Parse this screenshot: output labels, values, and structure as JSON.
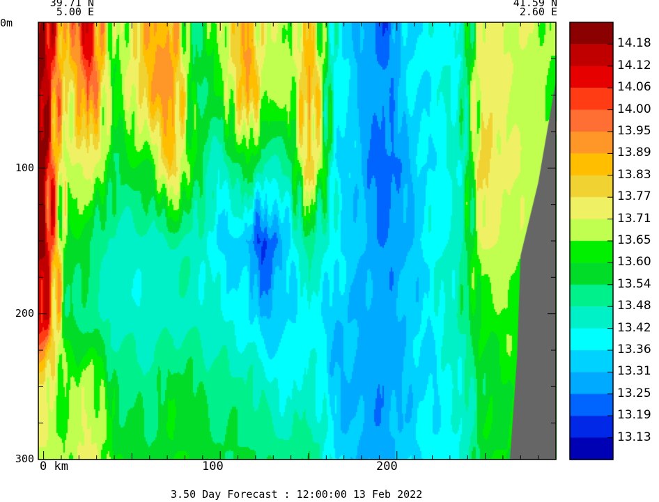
{
  "chart_data": {
    "type": "heatmap",
    "title": "3.50 Day Forecast : 12:00:00  13 Feb 2022",
    "start_point": {
      "lat": "39.71 N",
      "lon": "5.00 E"
    },
    "end_point": {
      "lat": "41.59 N",
      "lon": "2.60 E"
    },
    "xlabel": "km",
    "ylabel": "m",
    "xlim": [
      -3,
      290
    ],
    "ylim": [
      0,
      300
    ],
    "x_ticks": [
      0,
      100,
      200
    ],
    "x_tick_labels": [
      "0 km",
      "100",
      "200"
    ],
    "y_ticks": [
      0,
      100,
      200,
      300
    ],
    "y_tick_labels": [
      "0m",
      "100",
      "200",
      "300"
    ],
    "colorbar": {
      "labels": [
        "14.18",
        "14.12",
        "14.06",
        "14.00",
        "13.95",
        "13.89",
        "13.83",
        "13.77",
        "13.71",
        "13.65",
        "13.60",
        "13.54",
        "13.48",
        "13.42",
        "13.36",
        "13.31",
        "13.25",
        "13.19",
        "13.13"
      ],
      "colors": [
        "#8b0000",
        "#c00000",
        "#e60000",
        "#ff3c14",
        "#ff6e32",
        "#ff9628",
        "#ffbe00",
        "#f0d232",
        "#f0f064",
        "#c0ff50",
        "#00f000",
        "#00dc28",
        "#00f08c",
        "#00f0c8",
        "#00ffff",
        "#00d2ff",
        "#00aaff",
        "#0064ff",
        "#0028e6",
        "#0000b4"
      ]
    },
    "land_color": "#666666",
    "columns": [
      {
        "x": 0,
        "v": [
          14.2,
          14.2,
          14.2,
          14.2,
          14.15,
          13.75,
          13.7
        ]
      },
      {
        "x": 12,
        "v": [
          13.85,
          13.7,
          13.65,
          13.6,
          13.55,
          13.62,
          13.65
        ]
      },
      {
        "x": 25,
        "v": [
          14.15,
          14.0,
          13.75,
          13.55,
          13.5,
          13.72,
          13.75
        ]
      },
      {
        "x": 40,
        "v": [
          13.6,
          13.6,
          13.55,
          13.45,
          13.45,
          13.55,
          13.6
        ]
      },
      {
        "x": 60,
        "v": [
          13.9,
          13.85,
          13.6,
          13.45,
          13.42,
          13.5,
          13.55
        ]
      },
      {
        "x": 72,
        "v": [
          13.9,
          13.95,
          13.83,
          13.48,
          13.45,
          13.58,
          13.6
        ]
      },
      {
        "x": 85,
        "v": [
          13.5,
          13.55,
          13.58,
          13.48,
          13.45,
          13.55,
          13.6
        ]
      },
      {
        "x": 100,
        "v": [
          13.7,
          13.58,
          13.42,
          13.35,
          13.42,
          13.5,
          13.55
        ]
      },
      {
        "x": 115,
        "v": [
          13.9,
          13.92,
          13.6,
          13.32,
          13.38,
          13.5,
          13.55
        ]
      },
      {
        "x": 124,
        "v": [
          13.72,
          13.68,
          13.45,
          13.15,
          13.3,
          13.45,
          13.55
        ]
      },
      {
        "x": 140,
        "v": [
          13.65,
          13.65,
          13.5,
          13.38,
          13.35,
          13.4,
          13.5
        ]
      },
      {
        "x": 150,
        "v": [
          13.85,
          13.92,
          13.85,
          13.52,
          13.4,
          13.45,
          13.55
        ]
      },
      {
        "x": 165,
        "v": [
          13.4,
          13.4,
          13.38,
          13.38,
          13.32,
          13.32,
          13.36
        ]
      },
      {
        "x": 180,
        "v": [
          13.28,
          13.3,
          13.3,
          13.32,
          13.3,
          13.28,
          13.3
        ]
      },
      {
        "x": 192,
        "v": [
          13.2,
          13.25,
          13.18,
          13.25,
          13.28,
          13.25,
          13.28
        ]
      },
      {
        "x": 205,
        "v": [
          13.35,
          13.35,
          13.3,
          13.3,
          13.32,
          13.32,
          13.35
        ]
      },
      {
        "x": 220,
        "v": [
          13.4,
          13.38,
          13.38,
          13.4,
          13.38,
          13.36,
          13.38
        ]
      },
      {
        "x": 235,
        "v": [
          13.4,
          13.45,
          13.42,
          13.45,
          13.5,
          13.42,
          13.4
        ]
      },
      {
        "x": 248,
        "v": [
          13.75,
          13.78,
          13.8,
          13.72,
          13.62,
          13.55,
          13.6
        ]
      },
      {
        "x": 262,
        "v": [
          13.72,
          13.7,
          13.72,
          13.7,
          13.65,
          13.6,
          13.6
        ]
      },
      {
        "x": 275,
        "v": [
          13.7,
          13.68,
          13.7,
          13.65,
          13.6,
          13.6,
          13.6
        ]
      },
      {
        "x": 288,
        "v": [
          13.65,
          13.65,
          13.65,
          13.6,
          13.6,
          13.6,
          13.6
        ]
      }
    ],
    "depths": [
      0,
      50,
      100,
      150,
      200,
      250,
      300
    ],
    "bathymetry": [
      [
        264,
        300
      ],
      [
        268,
        230
      ],
      [
        270,
        160
      ],
      [
        280,
        110
      ],
      [
        290,
        40
      ],
      [
        290,
        300
      ]
    ]
  }
}
